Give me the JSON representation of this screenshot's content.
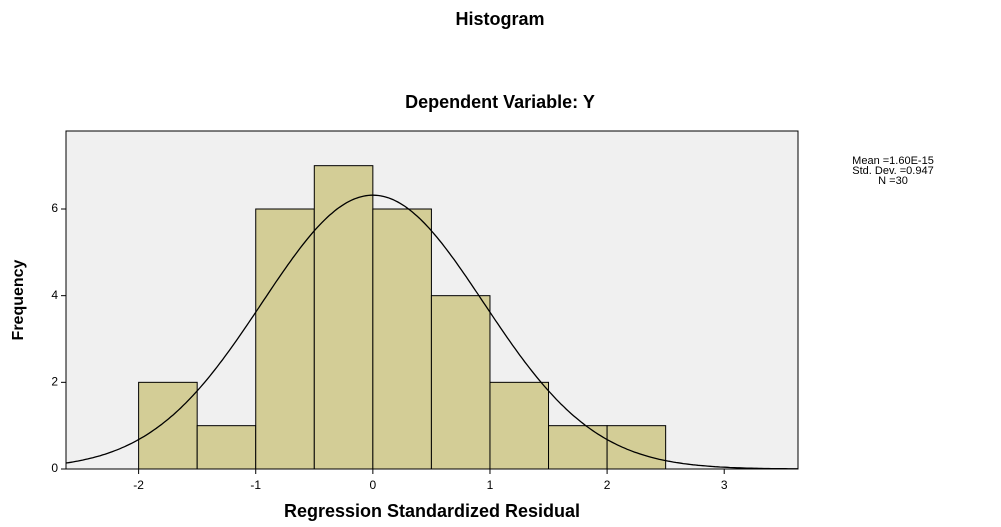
{
  "chart_data": {
    "type": "histogram",
    "title": "Histogram",
    "subtitle": "Dependent Variable: Y",
    "x_label": "Regression Standardized Residual",
    "y_label": "Frequency",
    "bins": [
      -2,
      -1.5,
      -1,
      -0.5,
      0,
      0.5,
      1,
      1.5,
      2,
      2.5
    ],
    "counts": [
      2,
      1,
      6,
      7,
      6,
      4,
      2,
      1,
      1
    ],
    "color": "#d3cd96",
    "curve_color": "#000000",
    "background": "#f0f0f0",
    "xlim": [
      -2.62,
      3.63
    ],
    "ylim": [
      0,
      7.8
    ],
    "xticks": [
      -2,
      -1,
      0,
      1,
      2,
      3
    ],
    "yticks": [
      0,
      2,
      4,
      6
    ],
    "stats": [
      {
        "value": 1.6e-15,
        "label": "Mean =1.60E-15"
      },
      {
        "value": 0.947,
        "label": "Std. Dev. =0.947"
      },
      {
        "value": 30,
        "label": "N =30"
      }
    ]
  }
}
